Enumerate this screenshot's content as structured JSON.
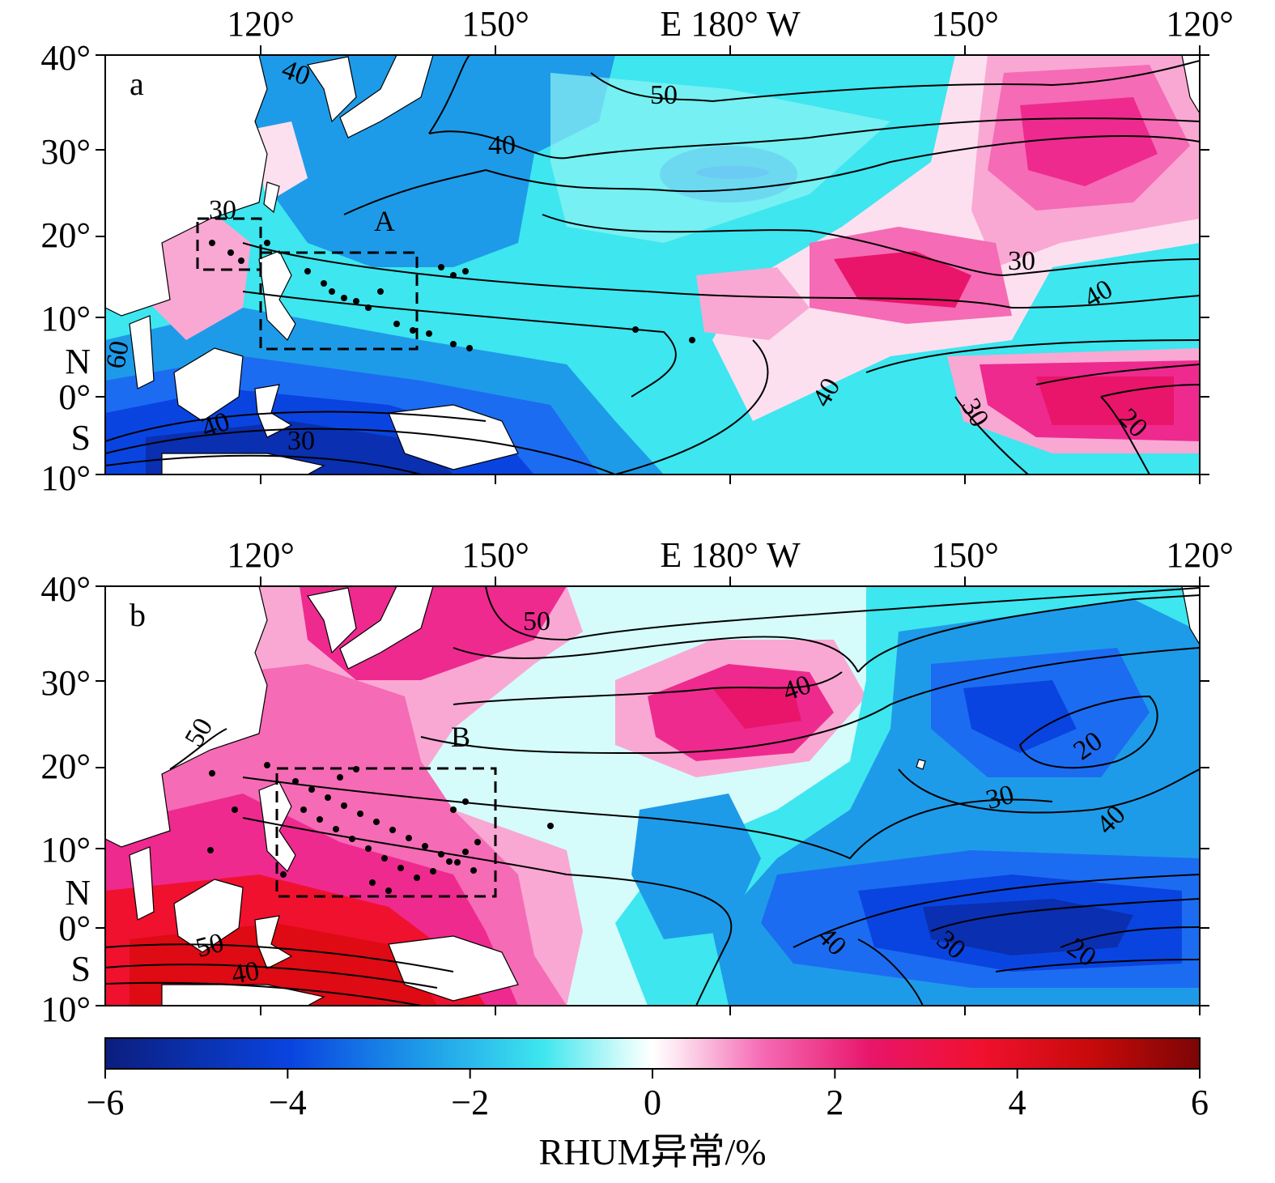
{
  "figure": {
    "colorbar": {
      "ticks": [
        "−6",
        "−4",
        "−2",
        "0",
        "2",
        "4",
        "6"
      ],
      "title": "RHUM异常/%",
      "colors": [
        "#0b1e7e",
        "#0a2fb0",
        "#0a44e0",
        "#1c6cf2",
        "#1e9be8",
        "#27c4ee",
        "#3ee6ef",
        "#8ef3f3",
        "#d5fbfb",
        "#ffffff",
        "#fde0ef",
        "#f9a8d3",
        "#f56bb5",
        "#ee2a8f",
        "#e8156a",
        "#f0112e",
        "#de0a14",
        "#b80808",
        "#7c0505"
      ]
    },
    "panels": [
      {
        "label": "a",
        "top_ticks": [
          "120°",
          "150°",
          "E 180° W",
          "150°",
          "120°"
        ],
        "left_ticks": [
          "40°",
          "30°",
          "20°",
          "10°",
          "N",
          "0°",
          "S",
          "10°"
        ],
        "box_label": "A",
        "contour_labels": [
          "40",
          "50",
          "40",
          "30",
          "40",
          "40",
          "30",
          "20",
          "60",
          "40",
          "30",
          "30"
        ],
        "anomaly_sign": "positive-east"
      },
      {
        "label": "b",
        "top_ticks": [
          "120°",
          "150°",
          "E 180° W",
          "150°",
          "120°"
        ],
        "left_ticks": [
          "40°",
          "30°",
          "20°",
          "10°",
          "N",
          "0°",
          "S",
          "10°"
        ],
        "box_label": "B",
        "contour_labels": [
          "50",
          "40",
          "50",
          "20",
          "30",
          "40",
          "40",
          "30",
          "20",
          "50",
          "40"
        ],
        "anomaly_sign": "positive-west"
      }
    ]
  }
}
